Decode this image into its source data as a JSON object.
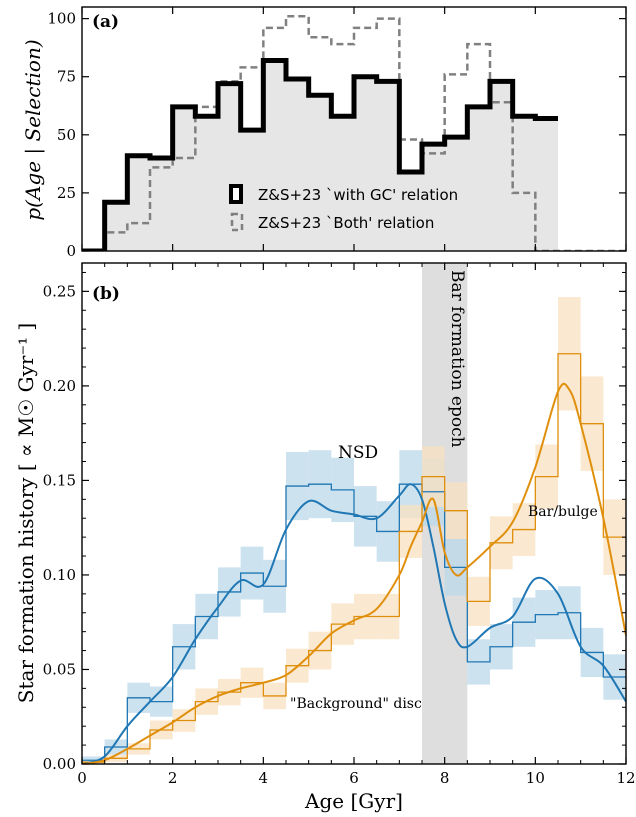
{
  "chart_data": [
    {
      "panel": "a",
      "type": "line",
      "panel_label": "(a)",
      "ylabel": "p(Age | Selection)",
      "xlim": [
        0,
        12
      ],
      "ylim": [
        0,
        105
      ],
      "yticks": [
        0,
        25,
        50,
        75,
        100
      ],
      "grid": false,
      "legend_placement": "center",
      "step_bin_edges": [
        0,
        0.5,
        1,
        1.5,
        2,
        2.5,
        3,
        3.5,
        4,
        4.5,
        5,
        5.5,
        6,
        6.5,
        7,
        7.5,
        8,
        8.5,
        9,
        9.5,
        10,
        10.5,
        11,
        11.5,
        12
      ],
      "series": [
        {
          "name": "Z&S+23 `with GC' relation",
          "style": "solid-thick",
          "color": "#000000",
          "fill": "#e6e6e6",
          "values": [
            0,
            21,
            41,
            40,
            62,
            58,
            72,
            52,
            82,
            74,
            67,
            58,
            75,
            73,
            34,
            46,
            49,
            62,
            73,
            58,
            57
          ]
        },
        {
          "name": "Z&S+23 `Both' relation",
          "style": "dashed",
          "color": "#808080",
          "values": [
            0,
            8,
            12,
            36,
            40,
            62,
            73,
            79,
            96,
            101,
            92,
            89,
            96,
            100,
            48,
            42,
            76,
            89,
            64,
            25,
            0,
            0,
            0,
            0
          ]
        }
      ]
    },
    {
      "panel": "b",
      "type": "line",
      "panel_label": "(b)",
      "xlabel": "Age [Gyr]",
      "ylabel": "Star formation history [ ∝ M☉ Gyr⁻¹ ]",
      "xlim": [
        0,
        12
      ],
      "ylim": [
        0,
        0.265
      ],
      "xticks": [
        0,
        2,
        4,
        6,
        8,
        10,
        12
      ],
      "yticks": [
        "0.00",
        "0.05",
        "0.10",
        "0.15",
        "0.20",
        "0.25"
      ],
      "grid": false,
      "bar_formation_epoch": [
        7.5,
        8.5
      ],
      "annotations": {
        "epoch": "Bar formation epoch",
        "nsd": "NSD",
        "bulge": "Bar/bulge",
        "disc": "\"Background\" disc"
      },
      "step_bin_edges": [
        0,
        0.5,
        1,
        1.5,
        2,
        2.5,
        3,
        3.5,
        4,
        4.5,
        5,
        5.5,
        6,
        6.5,
        7,
        7.5,
        8,
        8.5,
        9,
        9.5,
        10,
        10.5,
        11,
        11.5,
        12
      ],
      "series": [
        {
          "name": "NSD",
          "color": "#1f77b4",
          "band_color": "#bcd8ea",
          "step_values": [
            0.002,
            0.009,
            0.035,
            0.033,
            0.062,
            0.078,
            0.091,
            0.101,
            0.094,
            0.147,
            0.148,
            0.145,
            0.131,
            0.123,
            0.148,
            0.144,
            0.104,
            0.054,
            0.062,
            0.075,
            0.079,
            0.08,
            0.059,
            0.046,
            0.065
          ],
          "step_errors": [
            0.002,
            0.004,
            0.008,
            0.008,
            0.012,
            0.012,
            0.013,
            0.014,
            0.014,
            0.018,
            0.018,
            0.017,
            0.016,
            0.016,
            0.018,
            0.018,
            0.015,
            0.012,
            0.012,
            0.013,
            0.013,
            0.014,
            0.013,
            0.012,
            0.014
          ],
          "smooth_x": [
            0,
            0.5,
            1,
            1.5,
            2,
            2.5,
            3,
            3.5,
            4,
            4.5,
            5,
            5.5,
            6,
            6.5,
            7,
            7.25,
            7.5,
            7.75,
            8,
            8.25,
            8.5,
            9,
            9.5,
            10,
            10.5,
            11,
            11.5,
            12
          ],
          "smooth_y": [
            0.0,
            0.004,
            0.02,
            0.033,
            0.046,
            0.066,
            0.083,
            0.097,
            0.095,
            0.124,
            0.139,
            0.134,
            0.132,
            0.13,
            0.142,
            0.148,
            0.14,
            0.115,
            0.085,
            0.066,
            0.062,
            0.072,
            0.078,
            0.098,
            0.09,
            0.062,
            0.052,
            0.033
          ]
        },
        {
          "name": "Bar/bulge",
          "color": "#e08f0c",
          "band_color": "#f8e1c0",
          "step_values": [
            0.001,
            0.003,
            0.008,
            0.018,
            0.023,
            0.033,
            0.038,
            0.043,
            0.036,
            0.052,
            0.06,
            0.074,
            0.078,
            0.078,
            0.123,
            0.152,
            0.134,
            0.086,
            0.117,
            0.124,
            0.152,
            0.217,
            0.18,
            0.12,
            0.067
          ],
          "step_errors": [
            0.001,
            0.002,
            0.003,
            0.005,
            0.006,
            0.007,
            0.007,
            0.008,
            0.007,
            0.009,
            0.01,
            0.011,
            0.012,
            0.012,
            0.014,
            0.016,
            0.015,
            0.013,
            0.014,
            0.014,
            0.017,
            0.03,
            0.025,
            0.02,
            0.014
          ],
          "smooth_x": [
            0,
            0.5,
            1,
            1.5,
            2,
            2.5,
            3,
            3.5,
            4,
            4.5,
            5,
            5.5,
            6,
            6.5,
            7,
            7.25,
            7.5,
            7.75,
            8,
            8.25,
            8.5,
            9,
            9.5,
            10,
            10.5,
            10.75,
            11,
            11.5,
            12
          ],
          "smooth_y": [
            0.0,
            0.002,
            0.008,
            0.015,
            0.022,
            0.03,
            0.036,
            0.04,
            0.043,
            0.047,
            0.057,
            0.069,
            0.076,
            0.082,
            0.1,
            0.115,
            0.128,
            0.14,
            0.112,
            0.1,
            0.104,
            0.115,
            0.128,
            0.157,
            0.197,
            0.198,
            0.18,
            0.13,
            0.068
          ]
        }
      ]
    }
  ]
}
